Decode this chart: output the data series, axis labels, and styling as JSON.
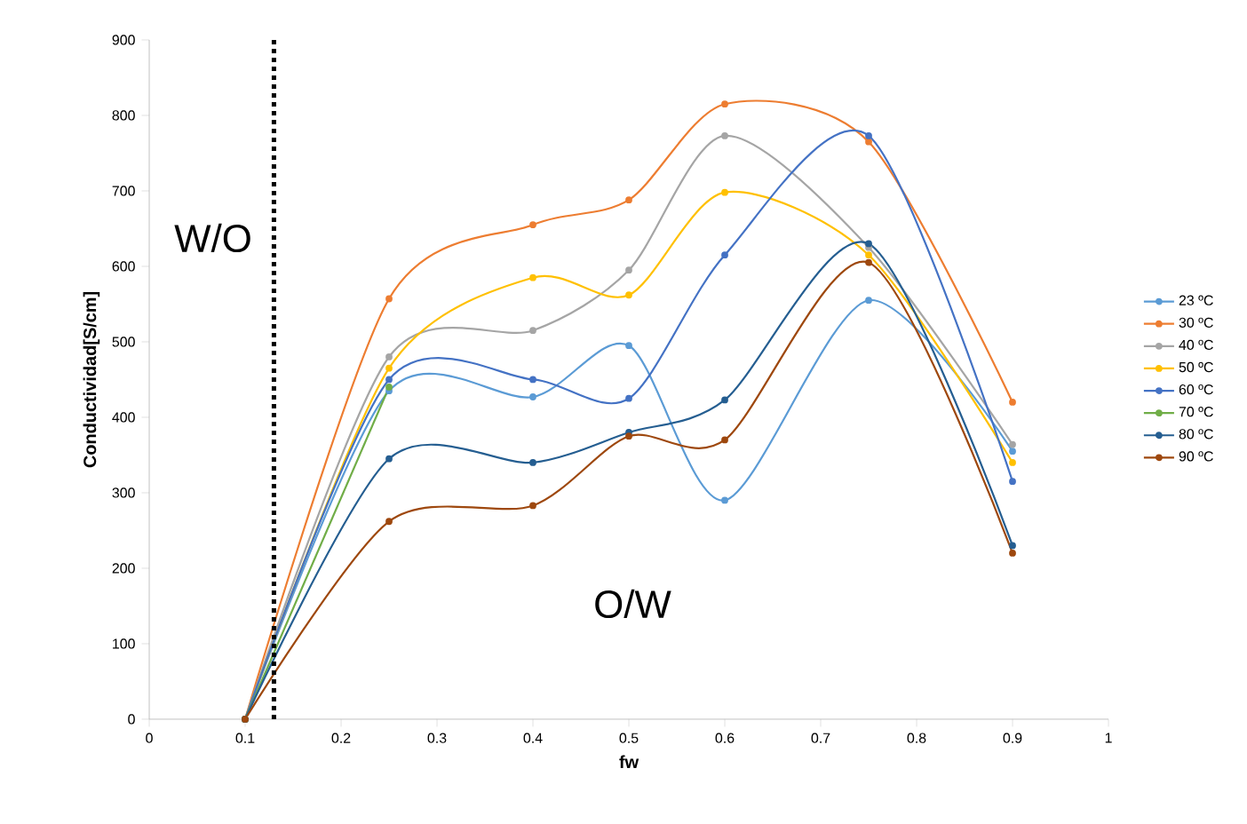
{
  "chart_data": {
    "type": "line",
    "xlabel": "fw",
    "ylabel": "Conductividad[S/cm]",
    "xlim": [
      0,
      1
    ],
    "xticks": [
      0,
      0.1,
      0.2,
      0.3,
      0.4,
      0.5,
      0.6,
      0.7,
      0.8,
      0.9,
      1
    ],
    "ylim": [
      0,
      900
    ],
    "yticks": [
      0,
      100,
      200,
      300,
      400,
      500,
      600,
      700,
      800,
      900
    ],
    "x": [
      0.1,
      0.25,
      0.4,
      0.5,
      0.6,
      0.75,
      0.9
    ],
    "series": [
      {
        "name": "23 ºC",
        "color": "#5b9bd5",
        "values": [
          0,
          435,
          427,
          495,
          290,
          555,
          355
        ]
      },
      {
        "name": "30 ºC",
        "color": "#ed7d31",
        "values": [
          0,
          557,
          655,
          688,
          815,
          765,
          420
        ]
      },
      {
        "name": "40 ºC",
        "color": "#a5a5a5",
        "values": [
          0,
          480,
          515,
          595,
          773,
          625,
          364
        ]
      },
      {
        "name": "50 ºC",
        "color": "#ffc000",
        "values": [
          0,
          465,
          585,
          562,
          698,
          615,
          340
        ]
      },
      {
        "name": "60 ºC",
        "color": "#4472c4",
        "values": [
          0,
          450,
          450,
          425,
          615,
          773,
          315
        ]
      },
      {
        "name": "70 ºC",
        "color": "#70ad47",
        "values": [
          0,
          440,
          null,
          null,
          null,
          null,
          null
        ]
      },
      {
        "name": "80 ºC",
        "color": "#255e91",
        "values": [
          0,
          345,
          340,
          380,
          423,
          630,
          230
        ]
      },
      {
        "name": "90 ºC",
        "color": "#9e480e",
        "values": [
          0,
          262,
          283,
          375,
          370,
          605,
          220
        ]
      }
    ],
    "ref_lines": [
      {
        "axis": "x",
        "value": 0.13,
        "color": "#000000",
        "line_style": "dotted"
      }
    ],
    "annotations": [
      "W/O",
      "O/W"
    ],
    "legend": "right",
    "marker": "circle",
    "line_style": "solid",
    "grid": false
  }
}
